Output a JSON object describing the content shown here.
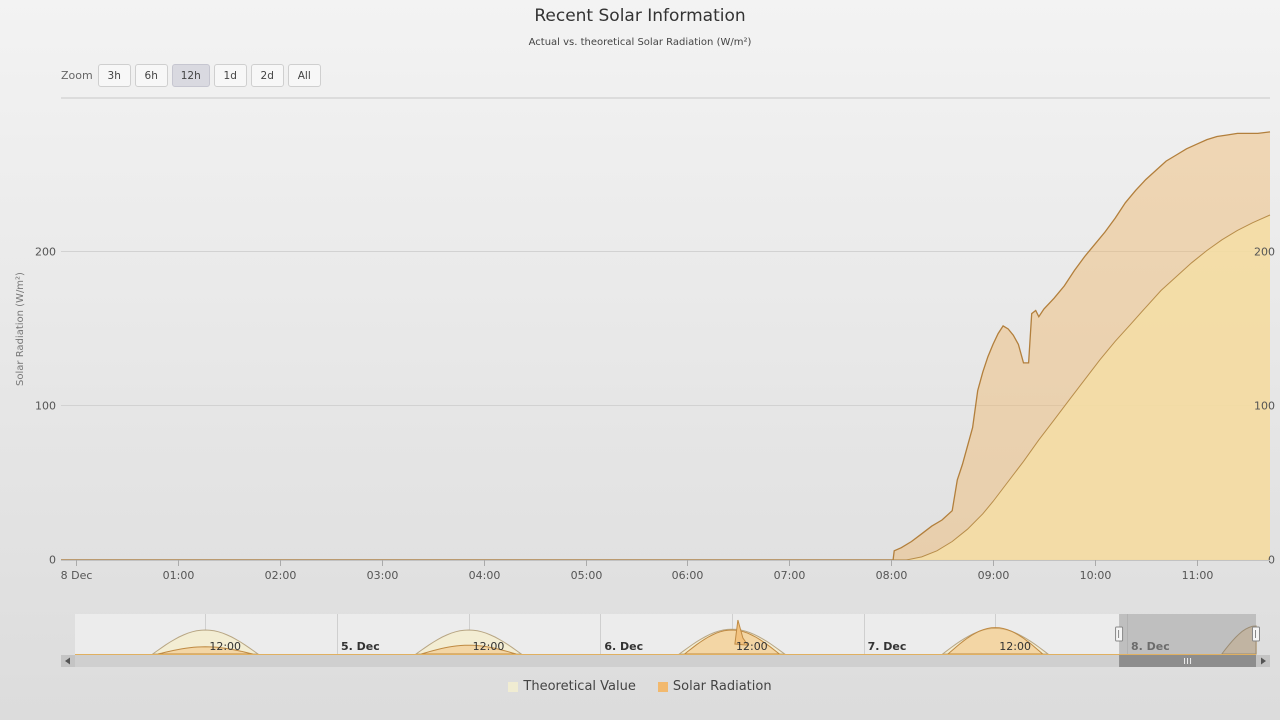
{
  "chart_data": {
    "type": "area",
    "title": "Recent Solar Information",
    "subtitle": "Actual vs. theoretical Solar Radiation (W/m²)",
    "ylabel": "Solar Radiation (W/m²)",
    "xlabel": "",
    "ylim": [
      0,
      300
    ],
    "yticks": [
      0,
      100,
      200
    ],
    "xlim": [
      -0.15,
      11.72
    ],
    "x_ticks": [
      {
        "x": 0,
        "label": "8 Dec"
      },
      {
        "x": 1,
        "label": "01:00"
      },
      {
        "x": 2,
        "label": "02:00"
      },
      {
        "x": 3,
        "label": "03:00"
      },
      {
        "x": 4,
        "label": "04:00"
      },
      {
        "x": 5,
        "label": "05:00"
      },
      {
        "x": 6,
        "label": "06:00"
      },
      {
        "x": 7,
        "label": "07:00"
      },
      {
        "x": 8,
        "label": "08:00"
      },
      {
        "x": 9,
        "label": "09:00"
      },
      {
        "x": 10,
        "label": "10:00"
      },
      {
        "x": 11,
        "label": "11:00"
      }
    ],
    "series": [
      {
        "name": "Theoretical Value",
        "color": "#f5dea6",
        "x": [
          -0.15,
          8.0,
          8.15,
          8.3,
          8.45,
          8.6,
          8.75,
          8.9,
          9.0,
          9.15,
          9.3,
          9.45,
          9.6,
          9.75,
          9.9,
          10.05,
          10.2,
          10.35,
          10.5,
          10.65,
          10.8,
          10.95,
          11.1,
          11.25,
          11.4,
          11.55,
          11.72
        ],
        "values": [
          0,
          0,
          0,
          2,
          6,
          12,
          20,
          30,
          38,
          51,
          64,
          78,
          91,
          104,
          117,
          130,
          142,
          153,
          164,
          175,
          184,
          193,
          201,
          208,
          214,
          219,
          224
        ]
      },
      {
        "name": "Solar Radiation",
        "color": "#f0b86c",
        "x": [
          -0.15,
          8.02,
          8.03,
          8.1,
          8.2,
          8.3,
          8.4,
          8.5,
          8.6,
          8.65,
          8.7,
          8.8,
          8.85,
          8.9,
          8.95,
          9.0,
          9.05,
          9.1,
          9.15,
          9.2,
          9.25,
          9.3,
          9.35,
          9.38,
          9.42,
          9.45,
          9.5,
          9.6,
          9.7,
          9.8,
          9.9,
          10.0,
          10.1,
          10.2,
          10.3,
          10.4,
          10.5,
          10.6,
          10.7,
          10.8,
          10.9,
          11.0,
          11.1,
          11.2,
          11.3,
          11.4,
          11.5,
          11.6,
          11.72
        ],
        "values": [
          0,
          0,
          6,
          8,
          12,
          17,
          22,
          26,
          32,
          52,
          62,
          86,
          110,
          122,
          132,
          140,
          147,
          152,
          150,
          146,
          140,
          128,
          128,
          160,
          162,
          158,
          163,
          170,
          178,
          188,
          197,
          205,
          213,
          222,
          232,
          240,
          247,
          253,
          259,
          263,
          267,
          270,
          273,
          275,
          276,
          277,
          277,
          277,
          278
        ]
      }
    ],
    "navigator": {
      "labels": [
        {
          "x": 0.5,
          "label": "12:00"
        },
        {
          "x": 1,
          "label": "5. Dec"
        },
        {
          "x": 1.5,
          "label": "12:00"
        },
        {
          "x": 2,
          "label": "6. Dec"
        },
        {
          "x": 2.5,
          "label": "12:00"
        },
        {
          "x": 3,
          "label": "7. Dec"
        },
        {
          "x": 3.5,
          "label": "12:00"
        },
        {
          "x": 4,
          "label": "8. Dec"
        }
      ],
      "xlim": [
        0.005,
        4.49
      ],
      "selection": [
        3.97,
        4.49
      ]
    }
  },
  "zoom": {
    "label": "Zoom",
    "buttons": [
      "3h",
      "6h",
      "12h",
      "1d",
      "2d",
      "All"
    ],
    "active": "12h"
  },
  "legend": [
    {
      "name": "Theoretical Value",
      "color": "#f0ecd2"
    },
    {
      "name": "Solar Radiation",
      "color": "#f2b96e"
    }
  ]
}
